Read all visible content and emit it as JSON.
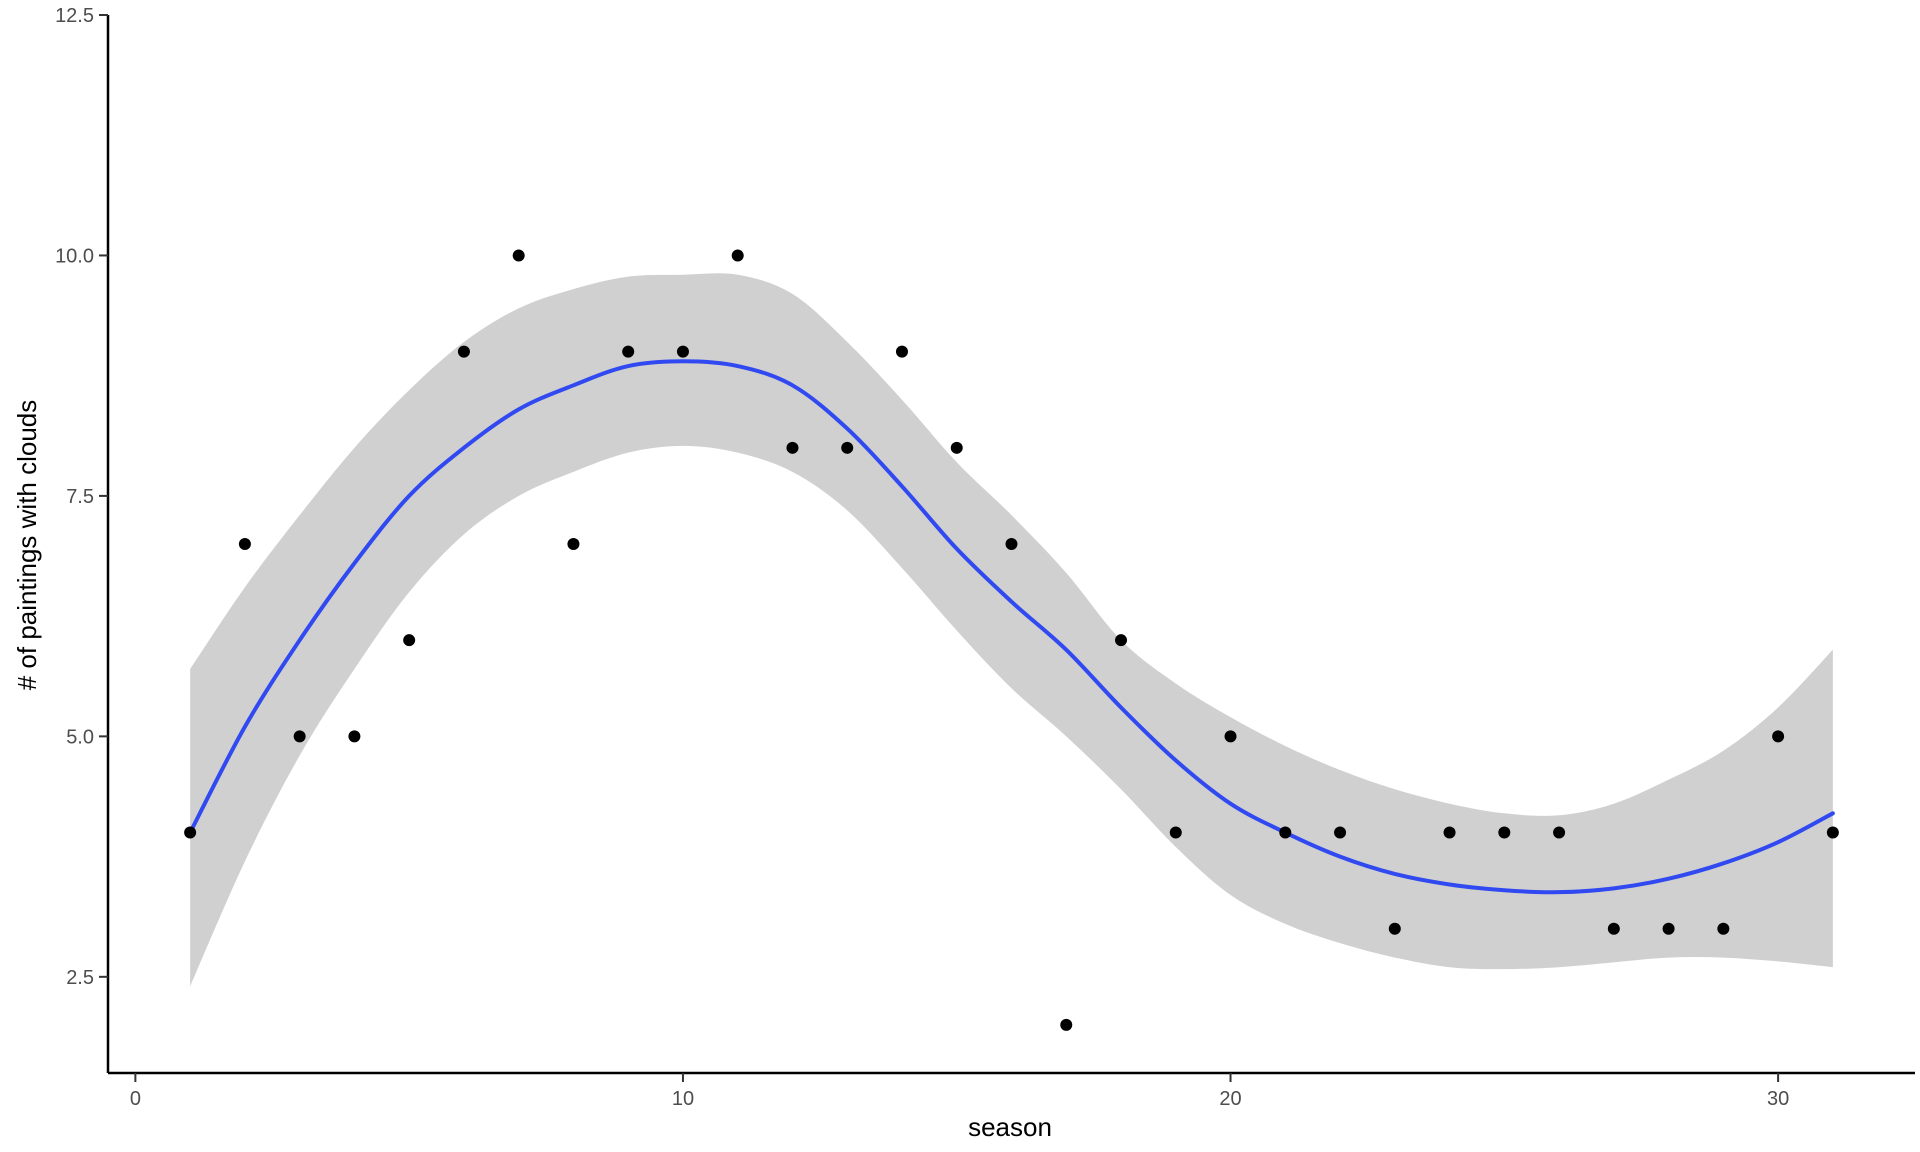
{
  "chart_data": {
    "type": "scatter",
    "title": "",
    "xlabel": "season",
    "ylabel": "# of paintings with clouds",
    "xlim": [
      -0.5,
      32.5
    ],
    "ylim": [
      1.5,
      12.5
    ],
    "x_ticks": [
      0,
      10,
      20,
      30
    ],
    "x_tick_labels": [
      "0",
      "10",
      "20",
      "30"
    ],
    "y_ticks": [
      2.5,
      5.0,
      7.5,
      10.0,
      12.5
    ],
    "y_tick_labels": [
      "2.5",
      "5.0",
      "7.5",
      "10.0",
      "12.5"
    ],
    "grid": false,
    "legend": "none",
    "points": {
      "x": [
        1,
        2,
        3,
        4,
        5,
        6,
        7,
        8,
        9,
        10,
        11,
        12,
        13,
        14,
        15,
        16,
        17,
        18,
        19,
        20,
        21,
        22,
        23,
        24,
        25,
        26,
        27,
        28,
        29,
        30,
        31
      ],
      "y": [
        4,
        7,
        5,
        5,
        6,
        9,
        10,
        7,
        9,
        9,
        10,
        8,
        8,
        9,
        8,
        7,
        2,
        6,
        4,
        5,
        4,
        4,
        3,
        4,
        4,
        4,
        3,
        3,
        3,
        5,
        4
      ],
      "color": "#000000"
    },
    "smooth": {
      "x": [
        1,
        2,
        3,
        4,
        5,
        6,
        7,
        8,
        9,
        10,
        11,
        12,
        13,
        14,
        15,
        16,
        17,
        18,
        19,
        20,
        21,
        22,
        23,
        24,
        25,
        26,
        27,
        28,
        29,
        30,
        31
      ],
      "y": [
        4.0,
        5.1,
        6.0,
        6.8,
        7.5,
        8.0,
        8.4,
        8.65,
        8.85,
        8.9,
        8.85,
        8.65,
        8.2,
        7.6,
        6.95,
        6.4,
        5.9,
        5.3,
        4.75,
        4.3,
        4.0,
        3.75,
        3.57,
        3.46,
        3.4,
        3.38,
        3.42,
        3.52,
        3.68,
        3.9,
        4.2
      ],
      "lower": [
        2.4,
        3.7,
        4.8,
        5.7,
        6.5,
        7.1,
        7.5,
        7.75,
        7.95,
        8.02,
        7.95,
        7.75,
        7.35,
        6.75,
        6.1,
        5.5,
        5.0,
        4.45,
        3.85,
        3.35,
        3.05,
        2.85,
        2.7,
        2.6,
        2.58,
        2.6,
        2.65,
        2.7,
        2.7,
        2.66,
        2.6
      ],
      "upper": [
        5.7,
        6.55,
        7.3,
        8.0,
        8.6,
        9.1,
        9.45,
        9.65,
        9.78,
        9.8,
        9.8,
        9.6,
        9.1,
        8.5,
        7.85,
        7.3,
        6.7,
        6.0,
        5.55,
        5.2,
        4.9,
        4.65,
        4.45,
        4.3,
        4.2,
        4.18,
        4.3,
        4.55,
        4.85,
        5.3,
        5.9
      ],
      "line_color": "#3049f0",
      "band_color": "#d0d0d0"
    }
  }
}
